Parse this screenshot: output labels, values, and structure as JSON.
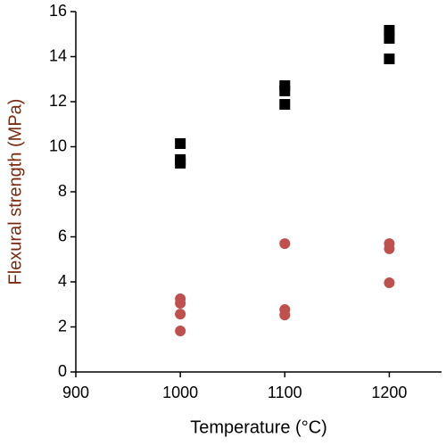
{
  "chart_data": {
    "type": "scatter",
    "x_label": "Temperature (°C)",
    "y_label": "Flexural strength (MPa)",
    "xlim": [
      900,
      1250
    ],
    "xticks": [
      900,
      1000,
      1100,
      1200
    ],
    "ylim": [
      0,
      16
    ],
    "yticks": [
      0,
      2,
      4,
      6,
      8,
      10,
      12,
      14,
      16
    ],
    "grid": false,
    "series": [
      {
        "color": "#000000",
        "marker": "square",
        "x": [
          1000,
          1000,
          1000,
          1100,
          1100,
          1100,
          1200,
          1200,
          1200
        ],
        "values": [
          10.14,
          9.43,
          9.27,
          12.71,
          12.48,
          11.88,
          15.17,
          14.81,
          13.9
        ]
      },
      {
        "color": "#c0504d",
        "marker": "circle",
        "x": [
          1000,
          1000,
          1000,
          1000,
          1100,
          1100,
          1100,
          1200,
          1200,
          1200
        ],
        "values": [
          3.25,
          3.05,
          2.57,
          1.82,
          5.7,
          2.77,
          2.53,
          5.7,
          5.47,
          3.96
        ]
      }
    ]
  }
}
